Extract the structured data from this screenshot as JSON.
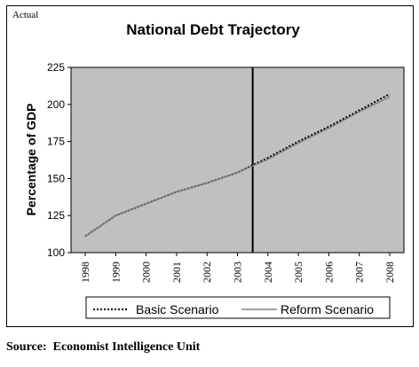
{
  "corner_label": "Actual",
  "source": "Source:  Economist Intelligence Unit",
  "colors": {
    "plot_background": "#c0c0c0",
    "basic_line": "#000000",
    "reform_line": "#808080",
    "divider": "#000000"
  },
  "chart_data": {
    "type": "line",
    "title": "National Debt Trajectory",
    "xlabel": "",
    "ylabel": "Percentage of GDP",
    "ylim": [
      100,
      225
    ],
    "yticks": [
      100,
      125,
      150,
      175,
      200,
      225
    ],
    "x_tick_labels": [
      "1998",
      "1999",
      "2000",
      "2001",
      "2002",
      "2003",
      "2004",
      "2005",
      "2006",
      "2007",
      "2008"
    ],
    "divider_x": 2003.5,
    "grid": false,
    "legend_position": "bottom",
    "series": [
      {
        "name": "Basic Scenario",
        "style": "dotted",
        "x": [
          1998,
          1999,
          2000,
          2001,
          2002,
          2003,
          2004,
          2005,
          2006,
          2007,
          2008
        ],
        "y": [
          111,
          125,
          133,
          141,
          147,
          154,
          164,
          175,
          185,
          196,
          207
        ]
      },
      {
        "name": "Reform Scenario",
        "style": "solid",
        "x": [
          1998,
          1999,
          2000,
          2001,
          2002,
          2003,
          2004,
          2005,
          2006,
          2007,
          2008
        ],
        "y": [
          111,
          125,
          133,
          141,
          147,
          154,
          163,
          174,
          184,
          195,
          205
        ]
      }
    ]
  }
}
